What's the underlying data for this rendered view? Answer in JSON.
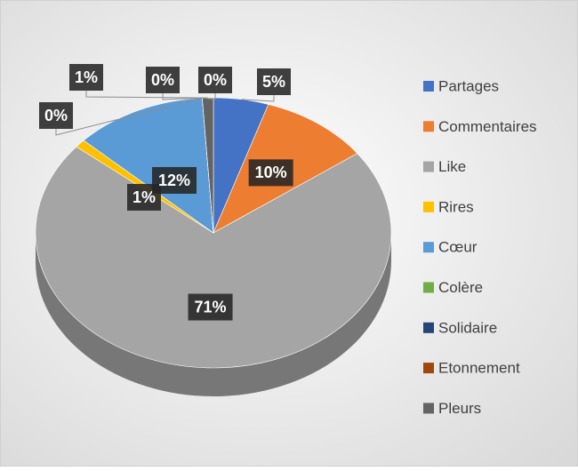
{
  "chart_data": {
    "type": "pie",
    "categories": [
      "Partages",
      "Commentaires",
      "Like",
      "Rires",
      "Cœur",
      "Colère",
      "Solidaire",
      "Etonnement",
      "Pleurs"
    ],
    "values": [
      5,
      10,
      71,
      1,
      12,
      0,
      0,
      0,
      1
    ],
    "value_labels": [
      "5%",
      "10%",
      "71%",
      "1%",
      "12%",
      "0%",
      "0%",
      "0%",
      "1%"
    ],
    "colors": [
      "#4472c4",
      "#ed7d31",
      "#a5a5a5",
      "#ffc000",
      "#5b9bd5",
      "#70ad47",
      "#264478",
      "#9e480e",
      "#636363"
    ],
    "legend": "right"
  }
}
